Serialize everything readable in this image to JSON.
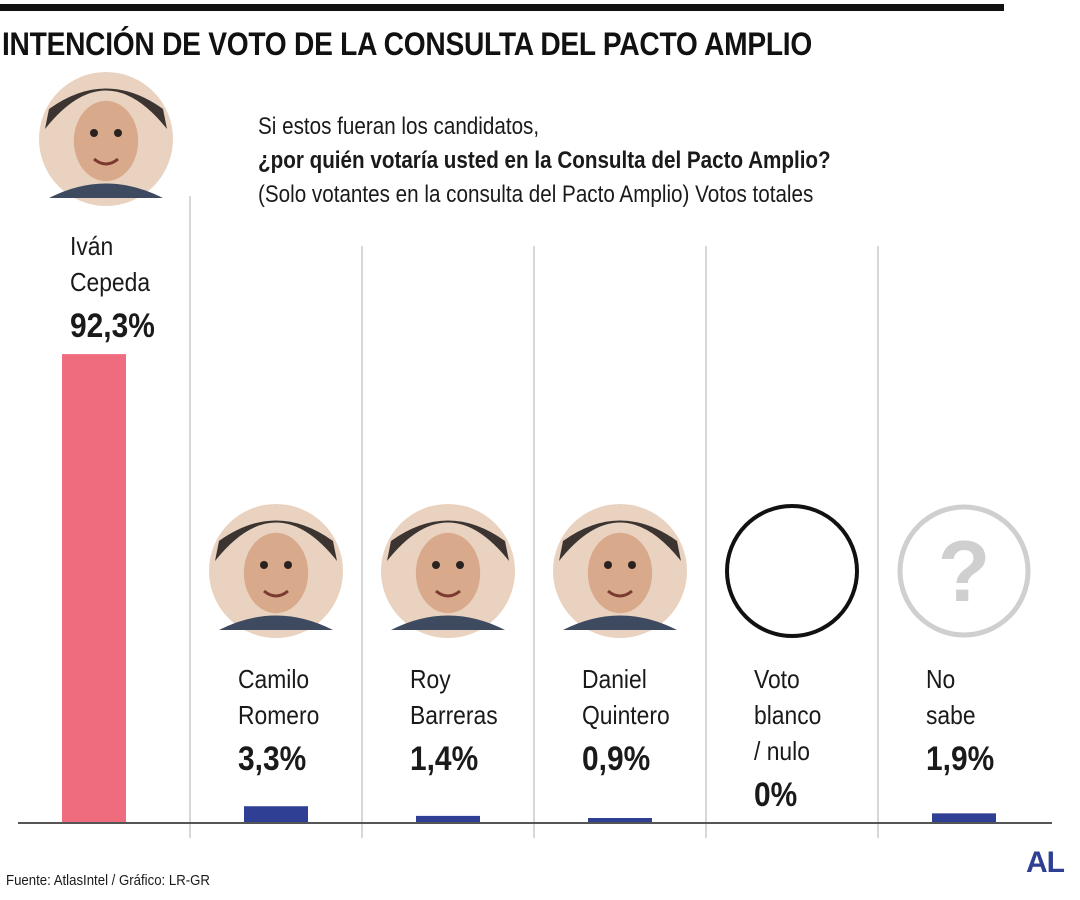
{
  "title": "INTENCIÓN DE VOTO DE LA CONSULTA DEL PACTO AMPLIO",
  "subtitle": {
    "line1": "Si estos fueran los candidatos,",
    "question": "¿por quién votaría usted en la Consulta del Pacto Amplio?",
    "line3": "(Solo votantes en la consulta del Pacto Amplio) Votos totales"
  },
  "source": "Fuente: AtlasIntel / Gráfico: LR-GR",
  "logo": "AL",
  "colors": {
    "highlight": "#ef6b7e",
    "bar": "#2f3f94",
    "axis": "#555555",
    "divider": "#cccccc"
  },
  "chart_data": {
    "type": "bar",
    "unit": "%",
    "ylim": [
      0,
      100
    ],
    "categories": [
      {
        "lines": [
          "Iván",
          "Cepeda"
        ],
        "value": 92.3,
        "label": "92,3%",
        "icon": "person-photo-icon",
        "highlight": true
      },
      {
        "lines": [
          "Camilo",
          "Romero"
        ],
        "value": 3.3,
        "label": "3,3%",
        "icon": "person-photo-icon",
        "highlight": false
      },
      {
        "lines": [
          "Roy",
          "Barreras"
        ],
        "value": 1.4,
        "label": "1,4%",
        "icon": "person-photo-icon",
        "highlight": false
      },
      {
        "lines": [
          "Daniel",
          "Quintero"
        ],
        "value": 0.9,
        "label": "0,9%",
        "icon": "person-photo-icon",
        "highlight": false
      },
      {
        "lines": [
          "Voto",
          "blanco",
          "/ nulo"
        ],
        "value": 0,
        "label": "0%",
        "icon": "empty-circle-icon",
        "highlight": false
      },
      {
        "lines": [
          "No",
          "sabe"
        ],
        "value": 1.9,
        "label": "1,9%",
        "icon": "question-mark-icon",
        "highlight": false
      }
    ]
  }
}
